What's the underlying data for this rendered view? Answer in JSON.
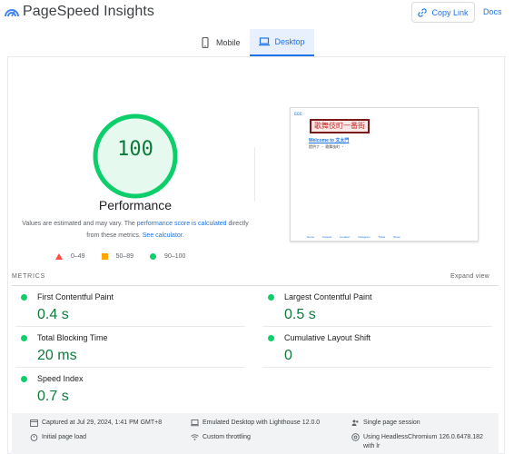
{
  "header": {
    "app_title": "PageSpeed Insights",
    "copy_link_label": "Copy Link",
    "docs_label": "Docs"
  },
  "tabs": [
    {
      "label": "Mobile",
      "icon": "smartphone-icon",
      "active": false
    },
    {
      "label": "Desktop",
      "icon": "laptop-icon",
      "active": true
    }
  ],
  "summary": {
    "score": "100",
    "score_fraction": 1.0,
    "category": "Performance",
    "desc_prefix": "Values are estimated and may vary. The ",
    "desc_link1": "performance score is calculated",
    "desc_middle": " directly from these metrics. ",
    "desc_link2": "See calculator.",
    "legend": [
      {
        "range": "0–49",
        "shape": "triangle",
        "color": "#ff4e42"
      },
      {
        "range": "50–89",
        "shape": "square",
        "color": "#ffa400"
      },
      {
        "range": "90–100",
        "shape": "circle",
        "color": "#0cce6b"
      }
    ]
  },
  "thumbnail": {
    "small_text": "ඞඞඞ",
    "stamp_text": "歌舞伎町一番街",
    "link_text": "Welcome to 文太門",
    "body_text": "提供ナ ・ 歌舞伎町 ・",
    "footer_text": "Home Contact Location Instagram Ticket Show"
  },
  "metrics_section": {
    "label": "METRICS",
    "expand_label": "Expand view",
    "items": [
      {
        "name": "First Contentful Paint",
        "value": "0.4 s"
      },
      {
        "name": "Largest Contentful Paint",
        "value": "0.5 s"
      },
      {
        "name": "Total Blocking Time",
        "value": "20 ms"
      },
      {
        "name": "Cumulative Layout Shift",
        "value": "0"
      },
      {
        "name": "Speed Index",
        "value": "0.7 s"
      }
    ]
  },
  "run_info": {
    "captured": "Captured at Jul 29, 2024, 1:41 PM GMT+8",
    "initial_load": "Initial page load",
    "emulated": "Emulated Desktop with Lighthouse 12.0.0",
    "throttling": "Custom throttling",
    "session": "Single page session",
    "browser_line1": "Using HeadlessChromium 126.0.6478.182",
    "browser_line2": "with lr"
  },
  "colors": {
    "accent": "#1a73e8",
    "pass_green": "#0cce6b",
    "pass_text": "#0c7a3b",
    "average_orange": "#ffa400",
    "fail_red": "#ff4e42"
  }
}
